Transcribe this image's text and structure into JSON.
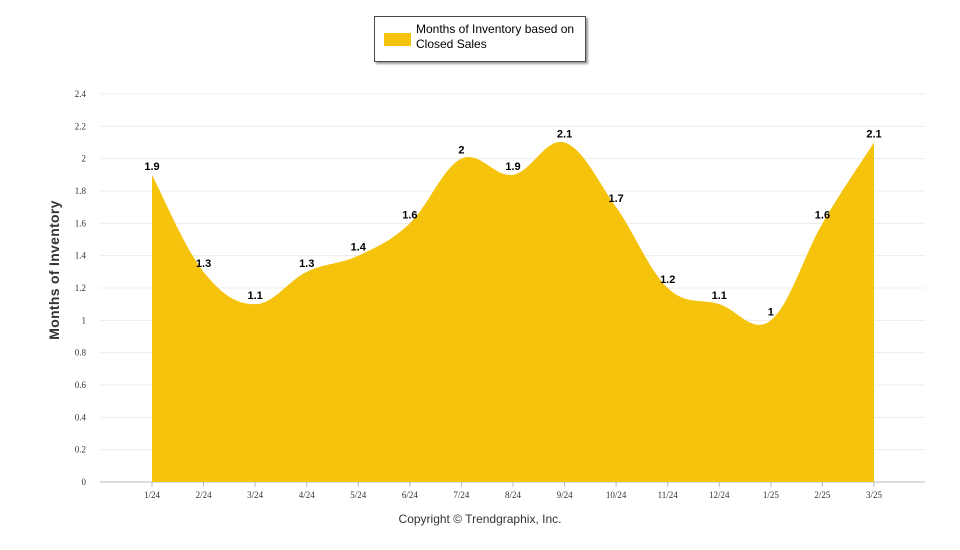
{
  "chart_data": {
    "type": "area",
    "categories": [
      "1/24",
      "2/24",
      "3/24",
      "4/24",
      "5/24",
      "6/24",
      "7/24",
      "8/24",
      "9/24",
      "10/24",
      "11/24",
      "12/24",
      "1/25",
      "2/25",
      "3/25"
    ],
    "series": [
      {
        "name": "Months of Inventory based on Closed Sales",
        "values": [
          1.9,
          1.3,
          1.1,
          1.3,
          1.4,
          1.6,
          2,
          1.9,
          2.1,
          1.7,
          1.2,
          1.1,
          1,
          1.6,
          2.1
        ],
        "color": "#f5c30c"
      }
    ],
    "data_labels": [
      "1.9",
      "1.3",
      "1.1",
      "1.3",
      "1.4",
      "1.6",
      "2",
      "1.9",
      "2.1",
      "1.7",
      "1.2",
      "1.1",
      "1",
      "1.6",
      "2.1"
    ],
    "title": "",
    "xlabel": "",
    "ylabel": "Months of Inventory",
    "ylim": [
      0,
      2.4
    ],
    "yticks": [
      "0",
      "0.2",
      "0.4",
      "0.6",
      "0.8",
      "1",
      "1.2",
      "1.4",
      "1.6",
      "1.8",
      "2",
      "2.2",
      "2.4"
    ],
    "grid": true,
    "legend": "top-center"
  },
  "legend": {
    "label": "Months of Inventory based on Closed Sales",
    "color": "#f5c30c"
  },
  "footer": {
    "copyright": "Copyright © Trendgraphix, Inc."
  }
}
